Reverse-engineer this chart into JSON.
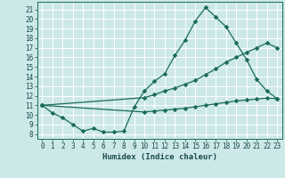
{
  "title": "",
  "xlabel": "Humidex (Indice chaleur)",
  "bg_color": "#cce8e8",
  "grid_color": "#ffffff",
  "line_color": "#1a6b5a",
  "xlim": [
    -0.5,
    23.5
  ],
  "ylim": [
    7.5,
    21.8
  ],
  "yticks": [
    8,
    9,
    10,
    11,
    12,
    13,
    14,
    15,
    16,
    17,
    18,
    19,
    20,
    21
  ],
  "xticks": [
    0,
    1,
    2,
    3,
    4,
    5,
    6,
    7,
    8,
    9,
    10,
    11,
    12,
    13,
    14,
    15,
    16,
    17,
    18,
    19,
    20,
    21,
    22,
    23
  ],
  "line1_x": [
    0,
    1,
    2,
    3,
    4,
    5,
    6,
    7,
    8,
    9,
    10,
    11,
    12,
    13,
    14,
    15,
    16,
    17,
    18,
    19,
    20,
    21,
    22,
    23
  ],
  "line1_y": [
    11.0,
    10.2,
    9.7,
    9.0,
    8.3,
    8.6,
    8.2,
    8.2,
    8.3,
    10.8,
    12.5,
    13.5,
    14.3,
    16.2,
    17.8,
    19.8,
    21.2,
    20.2,
    19.2,
    17.5,
    15.8,
    13.7,
    12.5,
    11.7
  ],
  "line2_x": [
    0,
    10,
    11,
    12,
    13,
    14,
    15,
    16,
    17,
    18,
    19,
    20,
    21,
    22,
    23
  ],
  "line2_y": [
    11.0,
    11.8,
    12.1,
    12.5,
    12.8,
    13.2,
    13.6,
    14.2,
    14.8,
    15.5,
    16.0,
    16.5,
    17.0,
    17.5,
    17.0
  ],
  "line3_x": [
    0,
    10,
    11,
    12,
    13,
    14,
    15,
    16,
    17,
    18,
    19,
    20,
    21,
    22,
    23
  ],
  "line3_y": [
    11.0,
    10.3,
    10.4,
    10.5,
    10.6,
    10.7,
    10.85,
    11.0,
    11.15,
    11.3,
    11.45,
    11.55,
    11.65,
    11.75,
    11.7
  ]
}
